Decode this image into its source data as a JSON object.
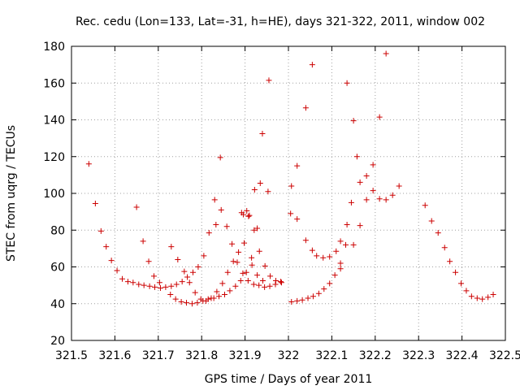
{
  "chart_data": {
    "type": "scatter",
    "title": "Rec. cedu (Lon=133, Lat=-31, h=HE), days 321-322, 2011, window 002",
    "xlabel": "GPS time / Days of year 2011",
    "ylabel": "STEC from uqrg / TECUs",
    "xlim": [
      321.5,
      322.5
    ],
    "ylim": [
      20,
      180
    ],
    "grid": true,
    "marker": "+",
    "color": "#cc0000",
    "x_ticks": [
      "321.5",
      "321.6",
      "321.7",
      "321.8",
      "321.9",
      "322",
      "322.1",
      "322.2",
      "322.3",
      "322.4",
      "322.5"
    ],
    "y_ticks": [
      "20",
      "40",
      "60",
      "80",
      "100",
      "120",
      "140",
      "160",
      "180"
    ],
    "points": [
      [
        321.54,
        116
      ],
      [
        321.555,
        94.5
      ],
      [
        321.568,
        79.5
      ],
      [
        321.58,
        71
      ],
      [
        321.592,
        63.5
      ],
      [
        321.605,
        58
      ],
      [
        321.617,
        53.5
      ],
      [
        321.63,
        52
      ],
      [
        321.642,
        51.5
      ],
      [
        321.655,
        50.5
      ],
      [
        321.667,
        50
      ],
      [
        321.68,
        49.5
      ],
      [
        321.692,
        49
      ],
      [
        321.705,
        48.5
      ],
      [
        321.717,
        49
      ],
      [
        321.73,
        49.5
      ],
      [
        321.742,
        50.5
      ],
      [
        321.755,
        52
      ],
      [
        321.767,
        54.5
      ],
      [
        321.78,
        57
      ],
      [
        321.792,
        60
      ],
      [
        321.805,
        66
      ],
      [
        321.817,
        78.5
      ],
      [
        321.83,
        96.5
      ],
      [
        321.843,
        119.5
      ],
      [
        321.65,
        92.5
      ],
      [
        321.665,
        74
      ],
      [
        321.678,
        63
      ],
      [
        321.69,
        55
      ],
      [
        321.703,
        51.5
      ],
      [
        321.728,
        45
      ],
      [
        321.74,
        42.5
      ],
      [
        321.753,
        41
      ],
      [
        321.765,
        40.5
      ],
      [
        321.778,
        40
      ],
      [
        321.79,
        40.5
      ],
      [
        321.803,
        41.5
      ],
      [
        321.815,
        42.5
      ],
      [
        321.828,
        43
      ],
      [
        321.84,
        44
      ],
      [
        321.853,
        45
      ],
      [
        321.865,
        47
      ],
      [
        321.878,
        49.5
      ],
      [
        321.89,
        52.5
      ],
      [
        321.903,
        57
      ],
      [
        321.915,
        65
      ],
      [
        321.928,
        81
      ],
      [
        321.94,
        132.5
      ],
      [
        321.73,
        71
      ],
      [
        321.745,
        64
      ],
      [
        321.76,
        57.5
      ],
      [
        321.772,
        51.5
      ],
      [
        321.785,
        46
      ],
      [
        321.798,
        42.5
      ],
      [
        321.81,
        41.5
      ],
      [
        321.822,
        43
      ],
      [
        321.835,
        46.5
      ],
      [
        321.848,
        51
      ],
      [
        321.86,
        57
      ],
      [
        321.873,
        63
      ],
      [
        321.885,
        68
      ],
      [
        321.898,
        73
      ],
      [
        321.91,
        88
      ],
      [
        321.922,
        102
      ],
      [
        321.935,
        105.5
      ],
      [
        321.833,
        83
      ],
      [
        321.845,
        91
      ],
      [
        321.858,
        82
      ],
      [
        321.87,
        72.5
      ],
      [
        321.882,
        62.5
      ],
      [
        321.895,
        56.5
      ],
      [
        321.907,
        52.5
      ],
      [
        321.92,
        50.5
      ],
      [
        321.932,
        50
      ],
      [
        321.945,
        49
      ],
      [
        321.957,
        49.5
      ],
      [
        321.97,
        50.5
      ],
      [
        321.982,
        52
      ],
      [
        321.896,
        88.5
      ],
      [
        321.908,
        87.5
      ],
      [
        321.921,
        80
      ],
      [
        321.933,
        68.5
      ],
      [
        321.946,
        60.5
      ],
      [
        321.958,
        55
      ],
      [
        321.971,
        52.5
      ],
      [
        321.984,
        51.5
      ],
      [
        321.892,
        89.5
      ],
      [
        321.904,
        90.5
      ],
      [
        321.916,
        61
      ],
      [
        321.928,
        55.5
      ],
      [
        321.941,
        52.5
      ],
      [
        321.953,
        101
      ],
      [
        321.955,
        161.5
      ],
      [
        322.007,
        41
      ],
      [
        322.02,
        41.5
      ],
      [
        322.032,
        42
      ],
      [
        322.045,
        43
      ],
      [
        322.057,
        44
      ],
      [
        322.07,
        45.5
      ],
      [
        322.082,
        48
      ],
      [
        322.095,
        51
      ],
      [
        322.107,
        55.5
      ],
      [
        322.12,
        62
      ],
      [
        322.132,
        72
      ],
      [
        322.145,
        95
      ],
      [
        322.158,
        120
      ],
      [
        322.007,
        104
      ],
      [
        322.005,
        89
      ],
      [
        322.02,
        86
      ],
      [
        322.02,
        115
      ],
      [
        322.04,
        146.5
      ],
      [
        322.04,
        74.5
      ],
      [
        322.055,
        69
      ],
      [
        322.055,
        170
      ],
      [
        322.065,
        66
      ],
      [
        322.08,
        65
      ],
      [
        322.095,
        65.5
      ],
      [
        322.11,
        68.5
      ],
      [
        322.12,
        74
      ],
      [
        322.135,
        83
      ],
      [
        322.135,
        160
      ],
      [
        322.15,
        139.5
      ],
      [
        322.165,
        82.5
      ],
      [
        322.165,
        106
      ],
      [
        322.18,
        96.5
      ],
      [
        322.18,
        109.5
      ],
      [
        322.195,
        101.5
      ],
      [
        322.195,
        115.5
      ],
      [
        322.21,
        97
      ],
      [
        322.21,
        141.5
      ],
      [
        322.225,
        96.5
      ],
      [
        322.225,
        176
      ],
      [
        322.24,
        99
      ],
      [
        322.255,
        104
      ],
      [
        322.12,
        59
      ],
      [
        322.15,
        72
      ],
      [
        322.315,
        93.5
      ],
      [
        322.33,
        85
      ],
      [
        322.345,
        78.5
      ],
      [
        322.36,
        70.5
      ],
      [
        322.372,
        63
      ],
      [
        322.385,
        57
      ],
      [
        322.398,
        51
      ],
      [
        322.41,
        47
      ],
      [
        322.422,
        44
      ],
      [
        322.435,
        43
      ],
      [
        322.447,
        42.5
      ],
      [
        322.46,
        43.5
      ],
      [
        322.472,
        45
      ]
    ]
  }
}
